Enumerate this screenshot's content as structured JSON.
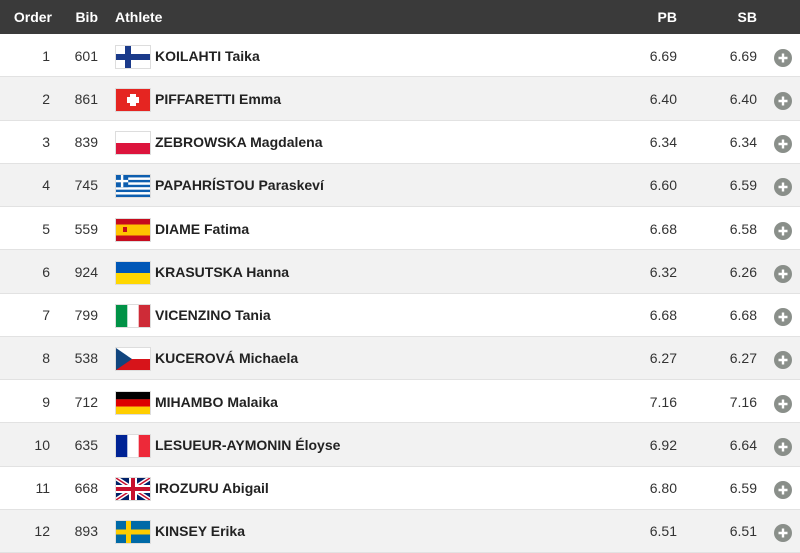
{
  "header": {
    "columns": [
      "Order",
      "Bib",
      "Athlete",
      "PB",
      "SB"
    ]
  },
  "table": {
    "rows": [
      [
        "1",
        "601",
        "KOILAHTI Taika",
        "6.69",
        "6.69"
      ],
      [
        "2",
        "861",
        "PIFFARETTI Emma",
        "6.40",
        "6.40"
      ],
      [
        "3",
        "839",
        "ZEBROWSKA Magdalena",
        "6.34",
        "6.34"
      ],
      [
        "4",
        "745",
        "PAPAHRÍSTOU Paraskeví",
        "6.60",
        "6.59"
      ],
      [
        "5",
        "559",
        "DIAME Fatima",
        "6.68",
        "6.58"
      ],
      [
        "6",
        "924",
        "KRASUTSKA Hanna",
        "6.32",
        "6.26"
      ],
      [
        "7",
        "799",
        "VICENZINO Tania",
        "6.68",
        "6.68"
      ],
      [
        "8",
        "538",
        "KUCEROVÁ Michaela",
        "6.27",
        "6.27"
      ],
      [
        "9",
        "712",
        "MIHAMBO Malaika",
        "7.16",
        "7.16"
      ],
      [
        "10",
        "635",
        "LESUEUR-AYMONIN Éloyse",
        "6.92",
        "6.64"
      ],
      [
        "11",
        "668",
        "IROZURU Abigail",
        "6.80",
        "6.59"
      ],
      [
        "12",
        "893",
        "KINSEY Erika",
        "6.51",
        "6.51"
      ]
    ]
  }
}
